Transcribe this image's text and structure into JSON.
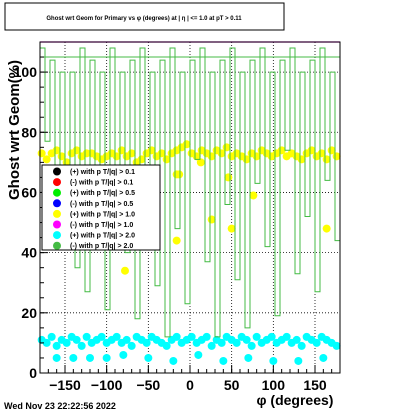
{
  "chart_data": {
    "type": "scatter",
    "title": "Ghost wrt Geom for Primary vs φ (degrees) at | η | <= 1.0 at pT > 0.11",
    "xlabel": "φ (degrees)",
    "ylabel": "Ghost wrt Geom(%)",
    "xlim": [
      -180,
      180
    ],
    "ylim": [
      0,
      110
    ],
    "x_ticks": [
      -150,
      -100,
      -50,
      0,
      50,
      100,
      150
    ],
    "x_tick_labels": [
      "−150",
      "−100",
      "−50",
      "0",
      "50",
      "100",
      "150"
    ],
    "y_ticks": [
      0,
      20,
      40,
      60,
      80,
      100
    ],
    "y_tick_labels": [
      "0",
      "20",
      "40",
      "60",
      "80",
      "100"
    ],
    "grid": true,
    "legend_position": "left",
    "timestamp": "Wed Nov 23 22:22:56 2022",
    "colors": {
      "yellow": "#ffff00",
      "cyan": "#00ffff",
      "green_line": "#44bb44",
      "magenta": "#ff00ff",
      "frame": "#000000"
    },
    "legend": [
      {
        "label": "(+) with p T/|q| > 0.1",
        "color": "#000000"
      },
      {
        "label": "(-) with p T/|q| > 0.1",
        "color": "#ff0000"
      },
      {
        "label": "(+) with p T/|q| > 0.5",
        "color": "#00ee00"
      },
      {
        "label": "(-) with p T/|q| > 0.5",
        "color": "#0000ff"
      },
      {
        "label": "(+) with p T/|q| > 1.0",
        "color": "#ffff00"
      },
      {
        "label": "(-) with p T/|q| > 1.0",
        "color": "#ff00ff"
      },
      {
        "label": "(+) with p T/|q| > 2.0",
        "color": "#00ffff"
      },
      {
        "label": "(-) with p T/|q| > 2.0",
        "color": "#44bb44"
      }
    ],
    "series": [
      {
        "name": "(+) with p T/|q| > 1.0",
        "color": "#ffff00",
        "x": [
          -178,
          -172,
          -166,
          -160,
          -154,
          -148,
          -142,
          -136,
          -130,
          -124,
          -118,
          -112,
          -106,
          -100,
          -94,
          -88,
          -82,
          -76,
          -70,
          -64,
          -58,
          -52,
          -46,
          -40,
          -34,
          -28,
          -22,
          -16,
          -10,
          -4,
          2,
          8,
          14,
          20,
          26,
          32,
          38,
          44,
          50,
          56,
          62,
          68,
          74,
          80,
          86,
          92,
          98,
          104,
          110,
          116,
          122,
          128,
          134,
          140,
          146,
          152,
          158,
          164,
          170,
          176,
          -16,
          -13,
          13,
          46,
          76,
          -78,
          -16,
          26,
          50,
          164
        ],
        "y": [
          73,
          71,
          73,
          74,
          72,
          70,
          73,
          74,
          72,
          73,
          73,
          72,
          71,
          72,
          73,
          72,
          74,
          72,
          73,
          70,
          71,
          73,
          74,
          72,
          73,
          71,
          73,
          74,
          75,
          76,
          73,
          72,
          74,
          73,
          72,
          74,
          73,
          75,
          72,
          73,
          72,
          71,
          73,
          72,
          74,
          73,
          72,
          73,
          74,
          72,
          73,
          72,
          71,
          73,
          74,
          72,
          73,
          71,
          74,
          72,
          66,
          66,
          70,
          65,
          59,
          34,
          44,
          51,
          48,
          48
        ]
      },
      {
        "name": "(+) with p T/|q| > 2.0",
        "color": "#00ffff",
        "x": [
          -178,
          -172,
          -166,
          -160,
          -154,
          -148,
          -142,
          -136,
          -130,
          -124,
          -118,
          -112,
          -106,
          -100,
          -94,
          -88,
          -82,
          -76,
          -70,
          -64,
          -58,
          -52,
          -46,
          -40,
          -34,
          -28,
          -22,
          -16,
          -10,
          -4,
          2,
          8,
          14,
          20,
          26,
          32,
          38,
          44,
          50,
          56,
          62,
          68,
          74,
          80,
          86,
          92,
          98,
          104,
          110,
          116,
          122,
          128,
          134,
          140,
          146,
          152,
          158,
          164,
          170,
          176,
          -160,
          -140,
          -120,
          -100,
          -80,
          -50,
          -20,
          10,
          40,
          70,
          100,
          130,
          160
        ],
        "y": [
          11,
          10,
          12,
          9,
          11,
          10,
          12,
          11,
          9,
          12,
          10,
          11,
          12,
          10,
          11,
          12,
          10,
          11,
          9,
          12,
          11,
          10,
          12,
          11,
          10,
          9,
          11,
          12,
          10,
          11,
          12,
          10,
          11,
          12,
          9,
          11,
          10,
          12,
          11,
          10,
          12,
          11,
          9,
          12,
          10,
          11,
          12,
          10,
          11,
          12,
          10,
          11,
          9,
          12,
          11,
          10,
          12,
          11,
          10,
          9,
          5,
          5,
          5,
          5,
          6,
          5,
          4,
          6,
          4,
          5,
          4,
          4,
          5
        ]
      },
      {
        "name": "(-) with p T/|q| > 2.0",
        "color": "#44bb44",
        "step_x": [
          -180,
          -174,
          -168,
          -162,
          -156,
          -150,
          -144,
          -138,
          -132,
          -126,
          -120,
          -114,
          -108,
          -102,
          -96,
          -90,
          -84,
          -78,
          -72,
          -66,
          -60,
          -54,
          -48,
          -42,
          -36,
          -30,
          -24,
          -18,
          -12,
          -6,
          0,
          6,
          12,
          18,
          24,
          30,
          36,
          42,
          48,
          54,
          60,
          66,
          72,
          78,
          84,
          90,
          96,
          102,
          108,
          114,
          120,
          126,
          132,
          138,
          144,
          150,
          156,
          162,
          168,
          174,
          180
        ],
        "step_y": [
          108,
          77,
          104,
          69,
          100,
          52,
          100,
          35,
          108,
          27,
          104,
          44,
          100,
          21,
          108,
          66,
          100,
          40,
          104,
          18,
          108,
          60,
          100,
          29,
          104,
          12,
          108,
          48,
          100,
          23,
          104,
          71,
          108,
          37,
          100,
          12,
          104,
          56,
          108,
          31,
          100,
          15,
          104,
          63,
          108,
          42,
          100,
          19,
          104,
          74,
          108,
          33,
          100,
          52,
          104,
          27,
          108,
          64,
          100,
          44,
          104
        ]
      },
      {
        "name": "(-) with p T/|q| > 1.0",
        "color": "#ff00ff",
        "x": [
          -180,
          180
        ],
        "y": [
          110,
          110
        ]
      }
    ]
  }
}
